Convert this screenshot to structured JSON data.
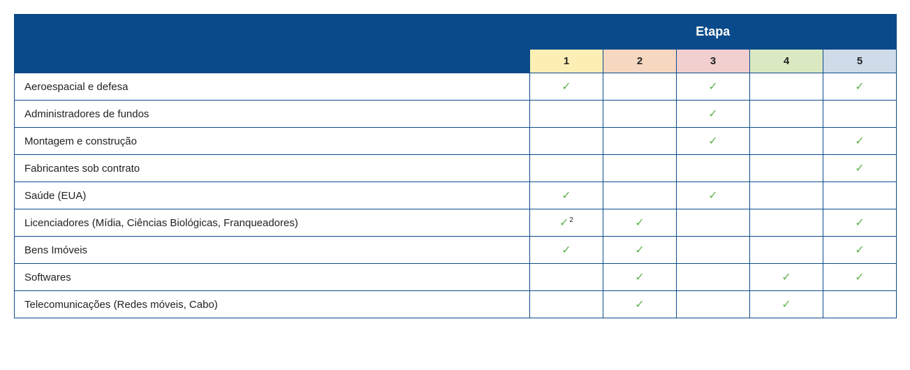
{
  "colors": {
    "header_bg": "#0a4a8a",
    "border": "#0a4a8a",
    "check": "#5fb24d",
    "stage_bg": [
      "#fdeeb5",
      "#f6d7c0",
      "#f1cfcf",
      "#dbe9c2",
      "#cfdbe9"
    ],
    "text": "#222222"
  },
  "header": {
    "title": "Etapa",
    "stages": [
      "1",
      "2",
      "3",
      "4",
      "5"
    ]
  },
  "check_glyph": "✓",
  "rows": [
    {
      "label": "Aeroespacial e defesa",
      "cells": [
        {
          "v": true
        },
        {
          "v": false
        },
        {
          "v": true
        },
        {
          "v": false
        },
        {
          "v": true
        }
      ]
    },
    {
      "label": "Administradores de fundos",
      "cells": [
        {
          "v": false
        },
        {
          "v": false
        },
        {
          "v": true
        },
        {
          "v": false
        },
        {
          "v": false
        }
      ]
    },
    {
      "label": "Montagem e construção",
      "cells": [
        {
          "v": false
        },
        {
          "v": false
        },
        {
          "v": true
        },
        {
          "v": false
        },
        {
          "v": true
        }
      ]
    },
    {
      "label": "Fabricantes sob contrato",
      "cells": [
        {
          "v": false
        },
        {
          "v": false
        },
        {
          "v": false
        },
        {
          "v": false
        },
        {
          "v": true
        }
      ]
    },
    {
      "label": "Saúde (EUA)",
      "cells": [
        {
          "v": true
        },
        {
          "v": false
        },
        {
          "v": true
        },
        {
          "v": false
        },
        {
          "v": false
        }
      ]
    },
    {
      "label": "Licenciadores (Mídia, Ciências Biológicas, Franqueadores)",
      "cells": [
        {
          "v": true,
          "sup": "2"
        },
        {
          "v": true
        },
        {
          "v": false
        },
        {
          "v": false
        },
        {
          "v": true
        }
      ]
    },
    {
      "label": "Bens Imóveis",
      "cells": [
        {
          "v": true
        },
        {
          "v": true
        },
        {
          "v": false
        },
        {
          "v": false
        },
        {
          "v": true
        }
      ]
    },
    {
      "label": "Softwares",
      "cells": [
        {
          "v": false
        },
        {
          "v": true
        },
        {
          "v": false
        },
        {
          "v": true
        },
        {
          "v": true
        }
      ]
    },
    {
      "label": "Telecomunicações (Redes móveis, Cabo)",
      "cells": [
        {
          "v": false
        },
        {
          "v": true
        },
        {
          "v": false
        },
        {
          "v": true
        },
        {
          "v": false
        }
      ]
    }
  ]
}
